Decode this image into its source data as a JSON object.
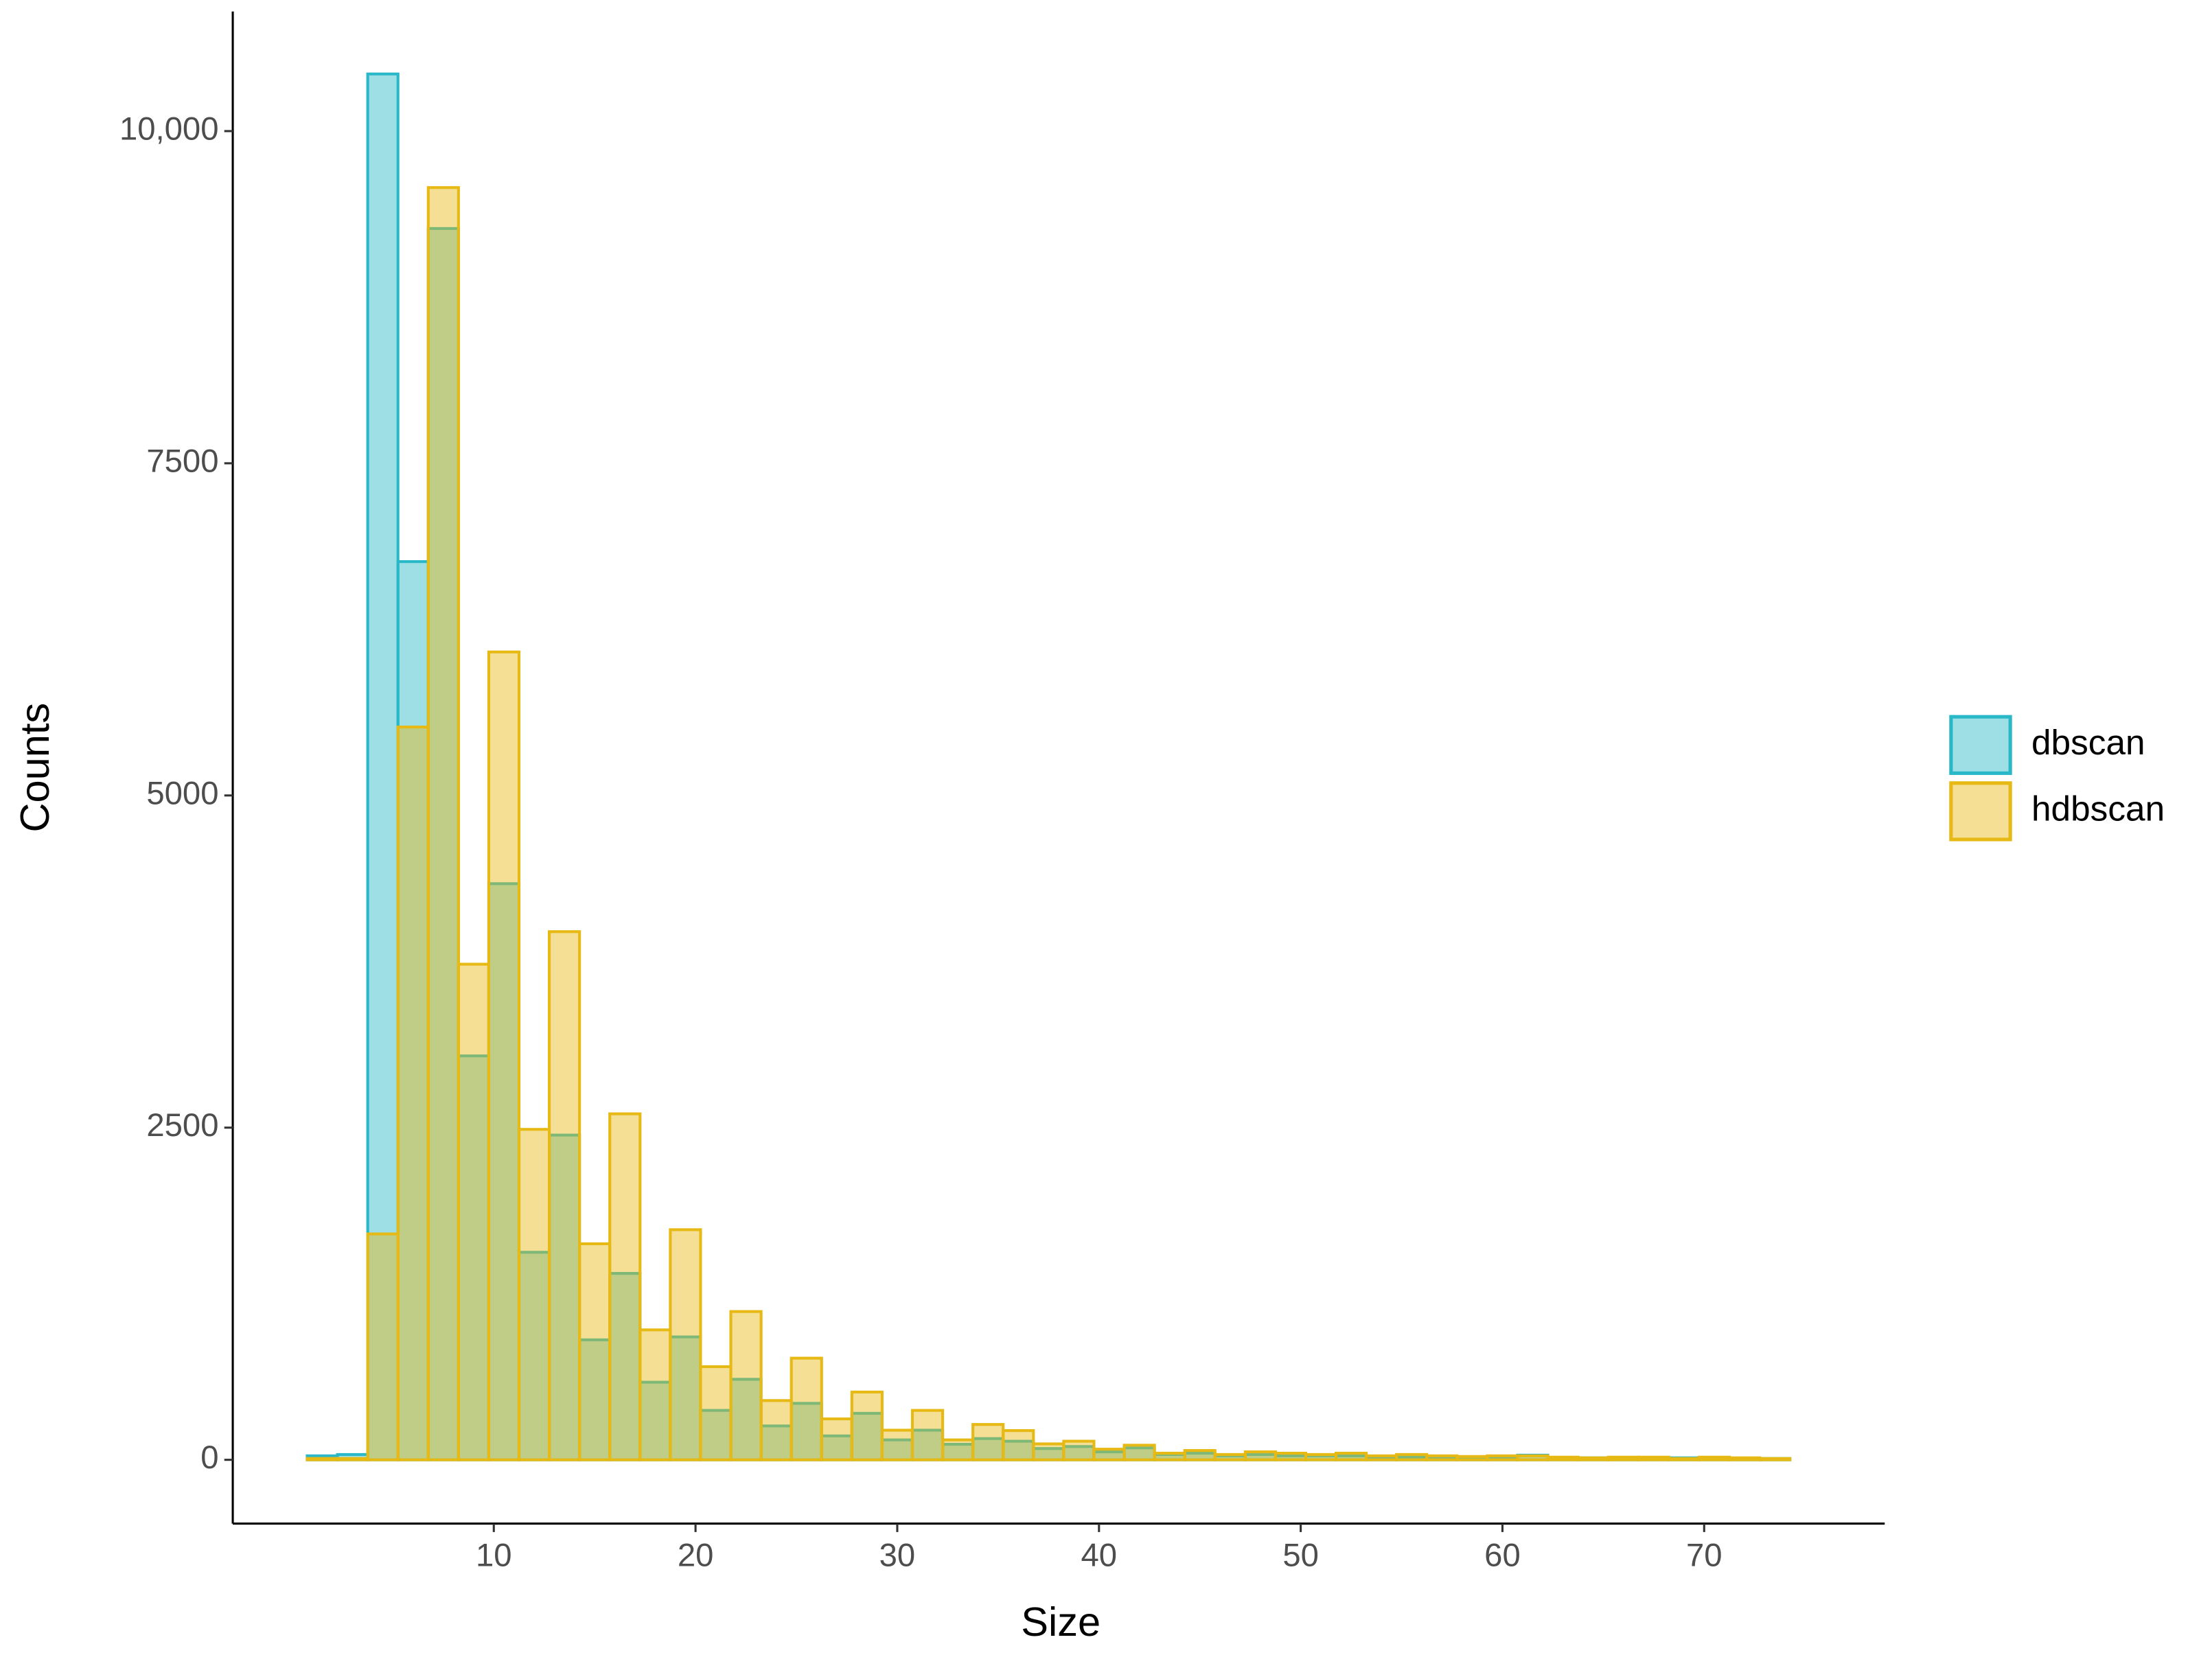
{
  "chart_data": {
    "type": "histogram",
    "xlabel": "Size",
    "ylabel": "Counts",
    "bins": [
      0.75,
      2.25,
      3.75,
      5.25,
      6.75,
      8.25,
      9.75,
      11.25,
      12.75,
      14.25,
      15.75,
      17.25,
      18.75,
      20.25,
      21.75,
      23.25,
      24.75,
      26.25,
      27.75,
      29.25,
      30.75,
      32.25,
      33.75,
      35.25,
      36.75,
      38.25,
      39.75,
      41.25,
      42.75,
      44.25,
      45.75,
      47.25,
      48.75,
      50.25,
      51.75,
      53.25,
      54.75,
      56.25,
      57.75,
      59.25,
      60.75,
      62.25,
      63.75,
      65.25,
      66.75,
      68.25,
      69.75,
      71.25,
      72.75,
      74.25
    ],
    "series": [
      {
        "name": "dbscan",
        "color": "#29b8c8",
        "values": [
          30,
          40,
          10430,
          6760,
          9267,
          3040,
          4336,
          1562,
          2444,
          903,
          1403,
          584,
          925,
          372,
          606,
          255,
          425,
          180,
          350,
          150,
          223,
          117,
          160,
          140,
          85,
          100,
          60,
          90,
          40,
          50,
          30,
          40,
          30,
          30,
          30,
          20,
          20,
          20,
          15,
          20,
          35,
          15,
          15,
          15,
          15,
          15,
          10,
          10,
          10
        ]
      },
      {
        "name": "hdbscan",
        "color": "#e6b914",
        "values": [
          10,
          10,
          1700,
          5515,
          9575,
          3730,
          6080,
          2487,
          3975,
          1626,
          2604,
          978,
          1732,
          701,
          1116,
          446,
          765,
          308,
          510,
          223,
          372,
          150,
          266,
          220,
          120,
          140,
          80,
          110,
          50,
          70,
          40,
          60,
          50,
          40,
          50,
          30,
          40,
          30,
          25,
          30,
          30,
          20,
          15,
          20,
          20,
          10,
          20,
          15,
          10
        ]
      }
    ],
    "xlim": [
      -2.94,
      78.95
    ],
    "xticks": [
      10,
      20,
      30,
      40,
      50,
      60,
      70
    ],
    "ylim": [
      -480,
      10900
    ],
    "yticks": [
      0,
      2500,
      5000,
      7500,
      {
        "value": 10000,
        "label": "10,000"
      }
    ],
    "legend": "right"
  }
}
